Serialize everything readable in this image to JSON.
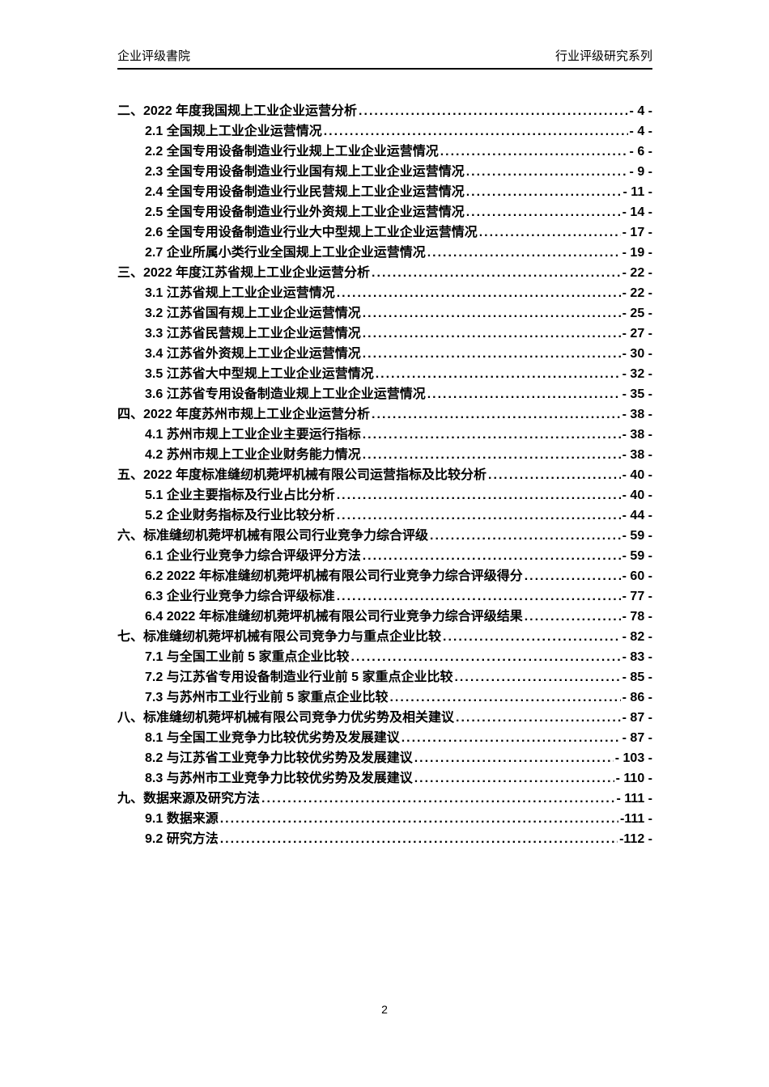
{
  "header": {
    "left": "企业评级書院",
    "right": "行业评级研究系列"
  },
  "toc": {
    "entries": [
      {
        "level": 1,
        "label": "二、2022 年度我国规上工业企业运营分析",
        "page": "- 4 -"
      },
      {
        "level": 2,
        "label": "2.1 全国规上工业企业运营情况",
        "page": "- 4 -"
      },
      {
        "level": 2,
        "label": "2.2 全国专用设备制造业行业规上工业企业运营情况",
        "page": "- 6 -"
      },
      {
        "level": 2,
        "label": "2.3 全国专用设备制造业行业国有规上工业企业运营情况",
        "page": "- 9 -"
      },
      {
        "level": 2,
        "label": "2.4 全国专用设备制造业行业民营规上工业企业运营情况",
        "page": "- 11 -"
      },
      {
        "level": 2,
        "label": "2.5 全国专用设备制造业行业外资规上工业企业运营情况",
        "page": "- 14 -"
      },
      {
        "level": 2,
        "label": "2.6 全国专用设备制造业行业大中型规上工业企业运营情况",
        "page": "- 17 -"
      },
      {
        "level": 2,
        "label": "2.7 企业所属小类行业全国规上工业企业运营情况",
        "page": "- 19 -"
      },
      {
        "level": 1,
        "label": "三、2022 年度江苏省规上工业企业运营分析",
        "page": "- 22 -"
      },
      {
        "level": 2,
        "label": "3.1 江苏省规上工业企业运营情况",
        "page": "- 22 -"
      },
      {
        "level": 2,
        "label": "3.2 江苏省国有规上工业企业运营情况",
        "page": "- 25 -"
      },
      {
        "level": 2,
        "label": "3.3 江苏省民营规上工业企业运营情况",
        "page": "- 27 -"
      },
      {
        "level": 2,
        "label": "3.4 江苏省外资规上工业企业运营情况",
        "page": "- 30 -"
      },
      {
        "level": 2,
        "label": "3.5 江苏省大中型规上工业企业运营情况",
        "page": "- 32 -"
      },
      {
        "level": 2,
        "label": "3.6 江苏省专用设备制造业规上工业企业运营情况",
        "page": "- 35 -"
      },
      {
        "level": 1,
        "label": "四、2022 年度苏州市规上工业企业运营分析",
        "page": "- 38 -"
      },
      {
        "level": 2,
        "label": "4.1 苏州市规上工业企业主要运行指标",
        "page": "- 38 -"
      },
      {
        "level": 2,
        "label": "4.2 苏州市规上工业企业财务能力情况",
        "page": "- 38 -"
      },
      {
        "level": 1,
        "label": "五、2022 年度标准缝纫机菀坪机械有限公司运营指标及比较分析",
        "page": "- 40 -"
      },
      {
        "level": 2,
        "label": "5.1 企业主要指标及行业占比分析",
        "page": "- 40 -"
      },
      {
        "level": 2,
        "label": "5.2 企业财务指标及行业比较分析",
        "page": "- 44 -"
      },
      {
        "level": 1,
        "label": "六、标准缝纫机菀坪机械有限公司行业竞争力综合评级",
        "page": "- 59 -"
      },
      {
        "level": 2,
        "label": "6.1 企业行业竞争力综合评级评分方法",
        "page": "- 59 -"
      },
      {
        "level": 2,
        "label": "6.2 2022 年标准缝纫机菀坪机械有限公司行业竞争力综合评级得分",
        "page": "- 60 -"
      },
      {
        "level": 2,
        "label": "6.3 企业行业竞争力综合评级标准",
        "page": "- 77 -"
      },
      {
        "level": 2,
        "label": "6.4 2022 年标准缝纫机菀坪机械有限公司行业竞争力综合评级结果",
        "page": "- 78 -"
      },
      {
        "level": 1,
        "label": "七、标准缝纫机菀坪机械有限公司竞争力与重点企业比较",
        "page": "- 82 -"
      },
      {
        "level": 2,
        "label": "7.1 与全国工业前 5 家重点企业比较",
        "page": "- 83 -"
      },
      {
        "level": 2,
        "label": "7.2 与江苏省专用设备制造业行业前 5 家重点企业比较",
        "page": "- 85 -"
      },
      {
        "level": 2,
        "label": "7.3 与苏州市工业行业前 5 家重点企业比较",
        "page": "- 86 -"
      },
      {
        "level": 1,
        "label": "八、标准缝纫机菀坪机械有限公司竞争力优劣势及相关建议",
        "page": "- 87 -"
      },
      {
        "level": 2,
        "label": "8.1 与全国工业竞争力比较优劣势及发展建议",
        "page": "- 87 -"
      },
      {
        "level": 2,
        "label": "8.2 与江苏省工业竞争力比较优劣势及发展建议",
        "page": "- 103 -"
      },
      {
        "level": 2,
        "label": "8.3 与苏州市工业竞争力比较优劣势及发展建议",
        "page": "- 110 -"
      },
      {
        "level": 1,
        "label": "九、数据来源及研究方法",
        "page": "- 111 -"
      },
      {
        "level": 2,
        "label": "9.1 数据来源",
        "page": "-111 -"
      },
      {
        "level": 2,
        "label": "9.2 研究方法",
        "page": "-112 -"
      }
    ]
  },
  "footer": {
    "page_number": "2"
  }
}
